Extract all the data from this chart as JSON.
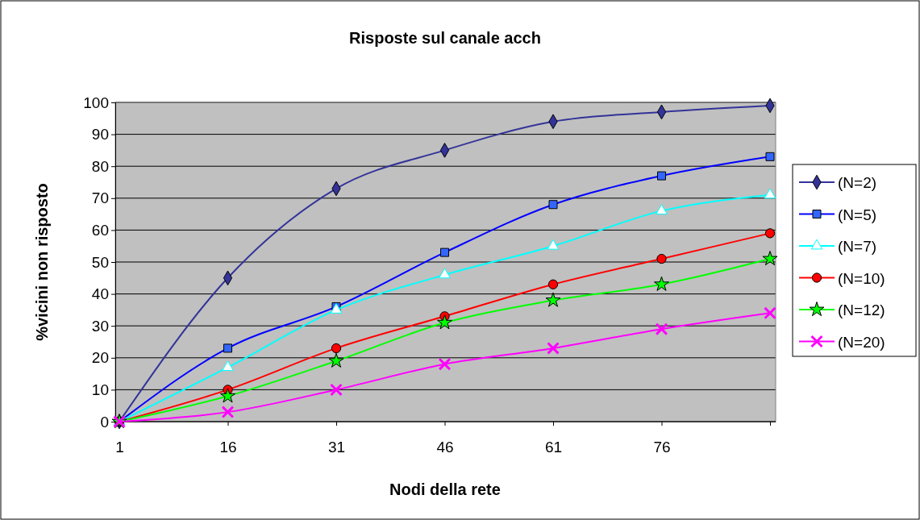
{
  "chart_data": {
    "type": "line",
    "title": "Risposte sul canale acch",
    "xlabel": "Nodi della rete",
    "ylabel": "%vicini non risposto",
    "categories": [
      "1",
      "16",
      "31",
      "46",
      "61",
      "76",
      null
    ],
    "ylim": [
      0,
      100
    ],
    "yticks": [
      0,
      10,
      20,
      30,
      40,
      50,
      60,
      70,
      80,
      90,
      100
    ],
    "grid": "y",
    "legend": "right",
    "series": [
      {
        "name": "(N=2)",
        "color": "#333399",
        "marker": "diamond",
        "values": [
          0,
          45,
          73,
          85,
          94,
          97,
          99
        ]
      },
      {
        "name": "(N=5)",
        "color": "#0000ff",
        "marker": "square",
        "values": [
          0,
          23,
          36,
          53,
          68,
          77,
          83
        ]
      },
      {
        "name": "(N=7)",
        "color": "#00ffff",
        "marker": "triangle",
        "values": [
          0,
          17,
          35,
          46,
          55,
          66,
          71
        ]
      },
      {
        "name": "(N=10)",
        "color": "#ff0000",
        "marker": "circle",
        "values": [
          0,
          10,
          23,
          33,
          43,
          51,
          59
        ]
      },
      {
        "name": "(N=12)",
        "color": "#00ff00",
        "marker": "star",
        "values": [
          0,
          8,
          19,
          31,
          38,
          43,
          51
        ]
      },
      {
        "name": "(N=20)",
        "color": "#ff00ff",
        "marker": "cross",
        "values": [
          0,
          3,
          10,
          18,
          23,
          29,
          34
        ]
      }
    ]
  }
}
